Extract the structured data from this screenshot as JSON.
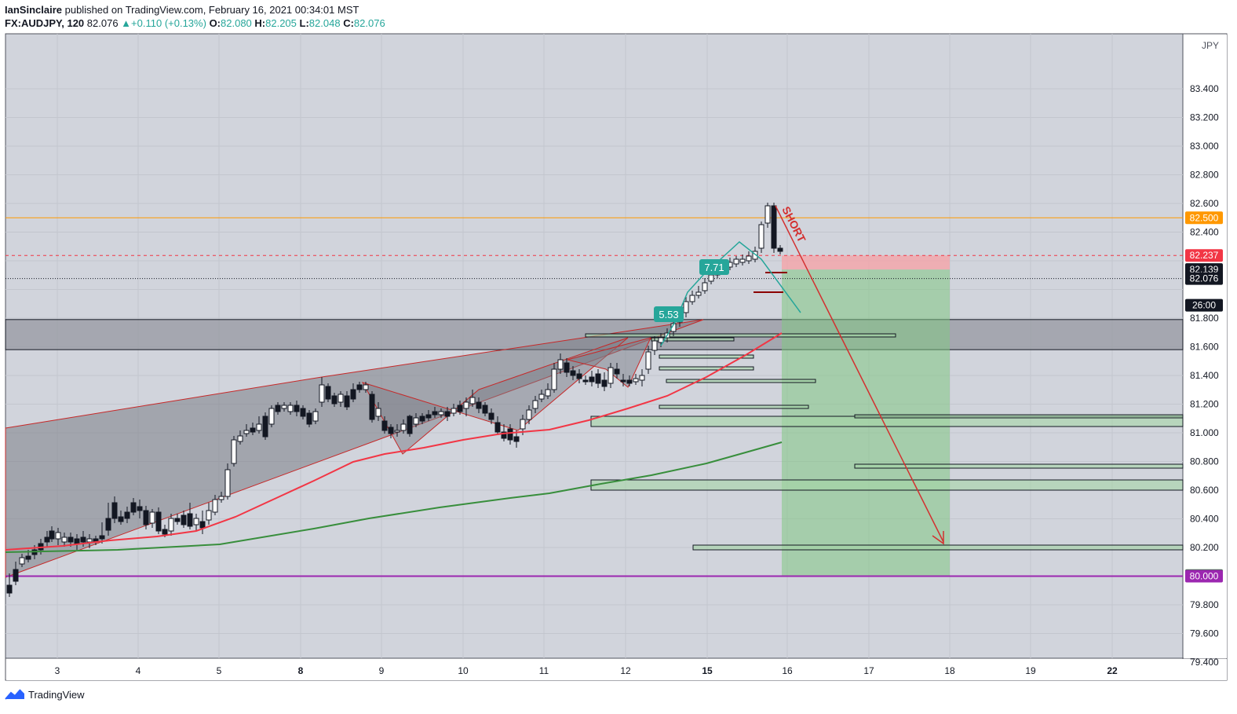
{
  "header": {
    "author": "IanSinclaire",
    "published_text": "published on TradingView.com, February 16, 2021 00:34:01 MST",
    "symbol": "FX:AUDJPY, 120",
    "last": "82.076",
    "change": "+0.110 (+0.13%)",
    "o_label": "O:",
    "o_value": "82.080",
    "h_label": "H:",
    "h_value": "82.205",
    "l_label": "L:",
    "l_value": "82.048",
    "c_label": "C:",
    "c_value": "82.076"
  },
  "footer": {
    "brand": "TradingView"
  },
  "chart_data": {
    "type": "candlestick",
    "currency_label": "JPY",
    "ylim": [
      79.2,
      83.6
    ],
    "y_ticks": [
      "83.400",
      "83.200",
      "83.000",
      "82.800",
      "82.600",
      "82.400",
      "81.800",
      "81.600",
      "81.400",
      "81.200",
      "81.000",
      "80.800",
      "80.600",
      "80.400",
      "80.200",
      "79.800",
      "79.600",
      "79.400"
    ],
    "x_ticks": [
      "3",
      "4",
      "5",
      "8",
      "9",
      "10",
      "11",
      "12",
      "15",
      "16",
      "17",
      "18",
      "19",
      "22"
    ],
    "price_labels": [
      {
        "text": "82.500",
        "value": 82.5,
        "color": "#ff9800"
      },
      {
        "text": "82.237",
        "value": 82.237,
        "color": "#f23645"
      },
      {
        "text": "82.139",
        "value": 82.139,
        "color": "#131722"
      },
      {
        "text": "82.076",
        "value": 82.076,
        "color": "#131722"
      },
      {
        "text": "26:00",
        "value": 81.89,
        "color": "#131722"
      },
      {
        "text": "80.004",
        "value": 80.004,
        "color": "#2e7d32"
      },
      {
        "text": "80.000",
        "value": 80.0,
        "color": "#9c27b0"
      }
    ],
    "levels": {
      "resistance": 82.5,
      "stop": 82.237,
      "entry": 82.139,
      "current": 82.076,
      "target": 80.004,
      "support": 80.0,
      "zone": [
        81.58,
        81.79
      ]
    },
    "annotations": [
      {
        "text": "SHORT",
        "color": "#d32f2f"
      },
      {
        "text": "7.71",
        "color": "#26a69a"
      },
      {
        "text": "5.53",
        "color": "#26a69a"
      }
    ],
    "series": [
      {
        "type": "ema",
        "color": "#f23645"
      },
      {
        "type": "sma",
        "color": "#388e3c"
      }
    ]
  }
}
